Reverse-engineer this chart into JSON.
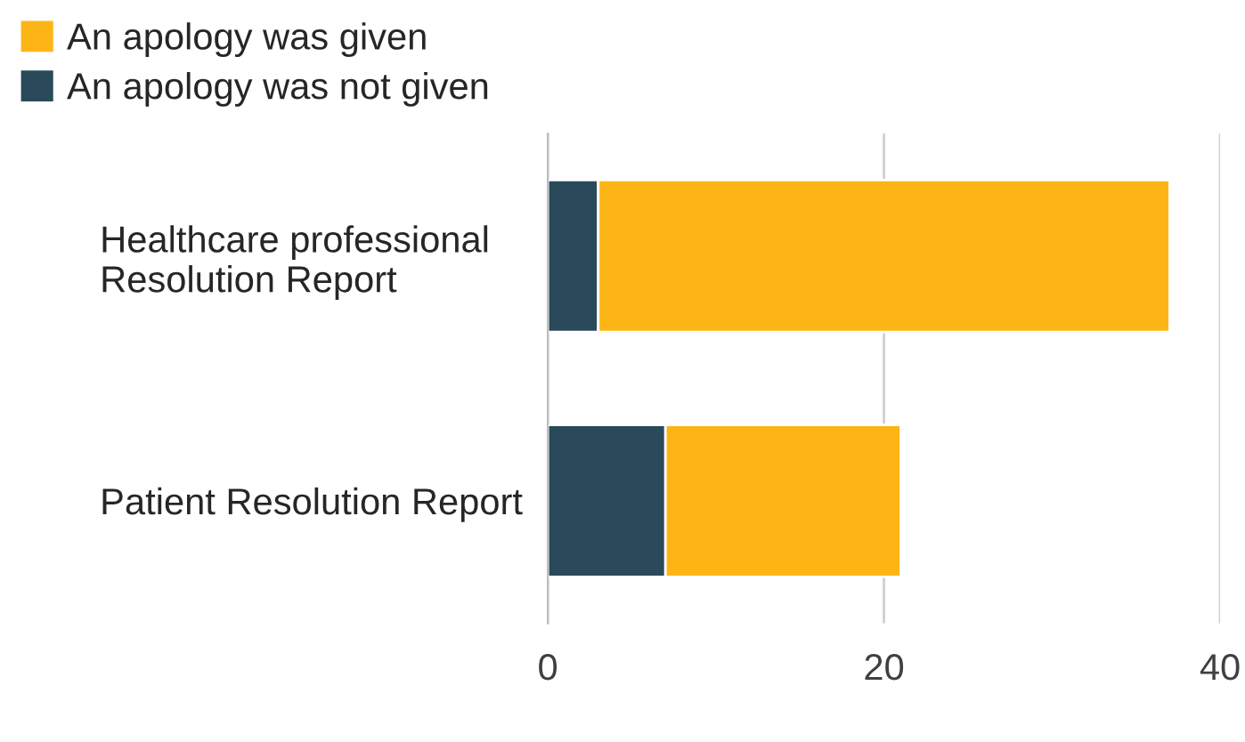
{
  "chart_data": {
    "type": "bar",
    "orientation": "horizontal",
    "stacked": true,
    "categories": [
      "Healthcare professional\nResolution Report",
      "Patient Resolution Report"
    ],
    "series": [
      {
        "name": "An apology was not given",
        "color": "#2a4a5b",
        "values": [
          3,
          7
        ]
      },
      {
        "name": "An apology was given",
        "color": "#fdb516",
        "values": [
          34,
          14
        ]
      }
    ],
    "xlim": [
      0,
      40
    ],
    "xticks": [
      0,
      20,
      40
    ],
    "grid": "x",
    "legend": "top left"
  }
}
